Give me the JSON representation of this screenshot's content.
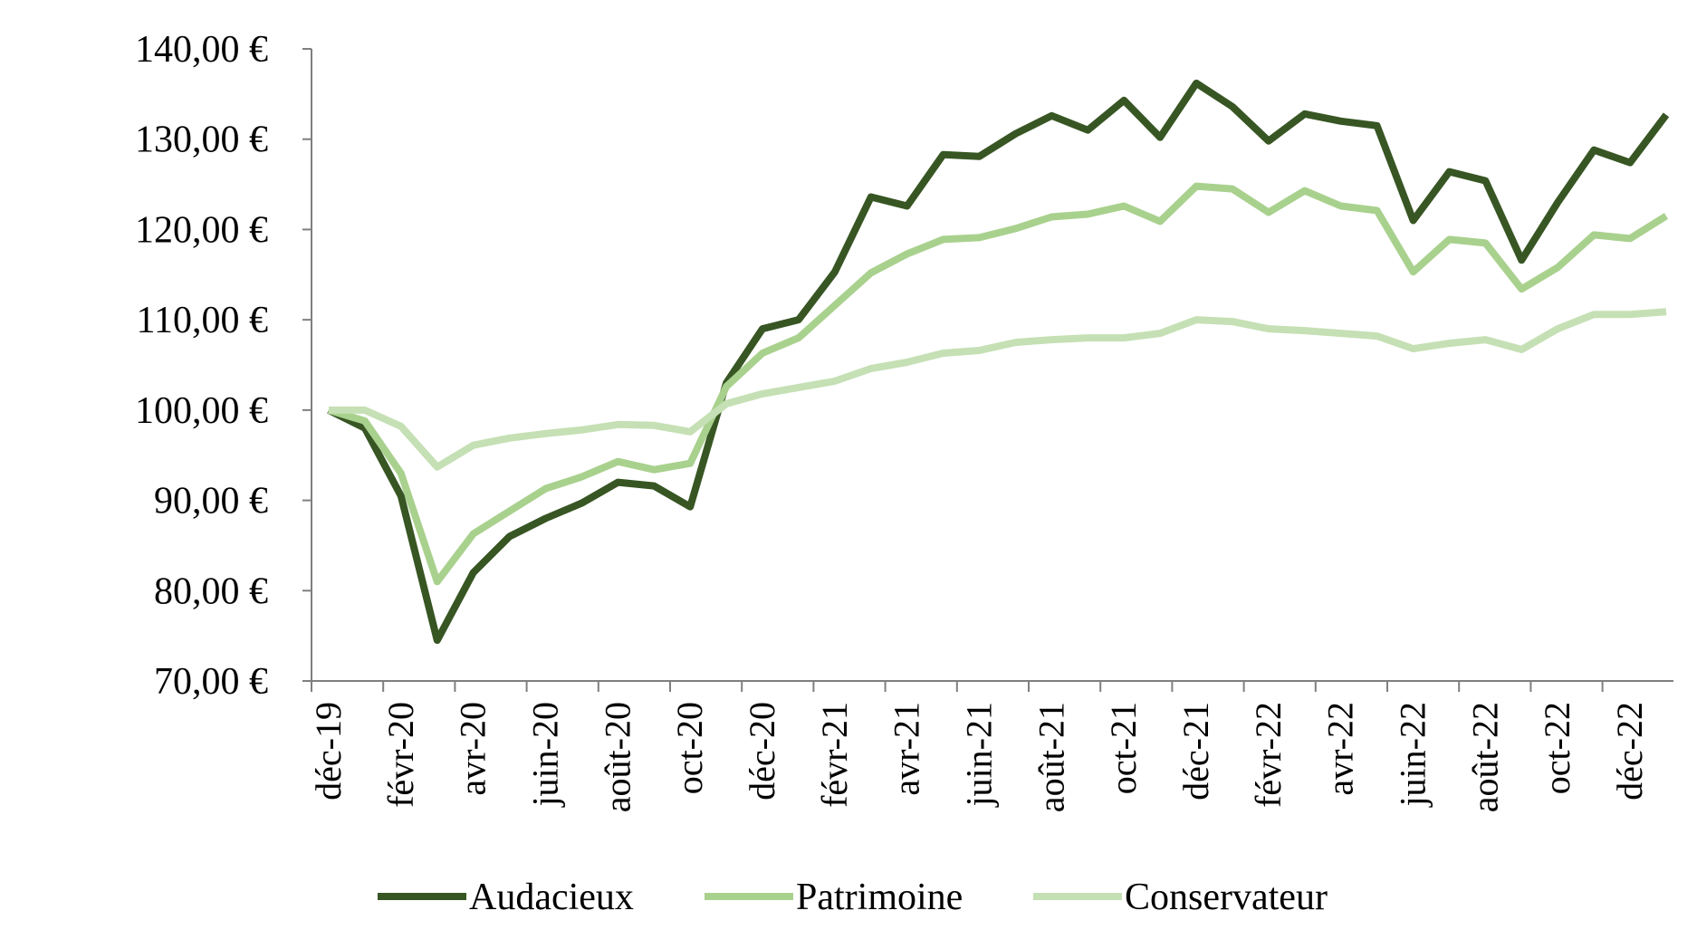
{
  "chart_data": {
    "type": "line",
    "title": "",
    "xlabel": "",
    "ylabel": "",
    "ylim": [
      70,
      140
    ],
    "y_ticks": [
      "70,00 €",
      "80,00 €",
      "90,00 €",
      "100,00 €",
      "110,00 €",
      "120,00 €",
      "130,00 €",
      "140,00 €"
    ],
    "x_tick_labels": [
      "déc-19",
      "févr-20",
      "avr-20",
      "juin-20",
      "août-20",
      "oct-20",
      "déc-20",
      "févr-21",
      "avr-21",
      "juin-21",
      "août-21",
      "oct-21",
      "déc-21",
      "févr-22",
      "avr-22",
      "juin-22",
      "août-22",
      "oct-22",
      "déc-22"
    ],
    "x": [
      "déc-19",
      "janv-20",
      "févr-20",
      "mars-20",
      "avr-20",
      "mai-20",
      "juin-20",
      "juil-20",
      "août-20",
      "sept-20",
      "oct-20",
      "nov-20",
      "déc-20",
      "janv-21",
      "févr-21",
      "mars-21",
      "avr-21",
      "mai-21",
      "juin-21",
      "juil-21",
      "août-21",
      "sept-21",
      "oct-21",
      "nov-21",
      "déc-21",
      "janv-22",
      "févr-22",
      "mars-22",
      "avr-22",
      "mai-22",
      "juin-22",
      "juil-22",
      "août-22",
      "sept-22",
      "oct-22",
      "nov-22",
      "déc-22",
      "janv-23"
    ],
    "grid": false,
    "legend_position": "bottom",
    "series": [
      {
        "name": "Audacieux",
        "color": "#375623",
        "values": [
          100,
          98,
          90.5,
          74.5,
          82,
          86,
          88,
          89.7,
          92,
          91.6,
          89.3,
          103,
          109,
          110,
          115.3,
          123.6,
          122.6,
          128.3,
          128.1,
          130.6,
          132.6,
          131,
          134.3,
          130.2,
          136.2,
          133.6,
          129.8,
          132.8,
          132,
          131.5,
          121,
          126.4,
          125.4,
          116.6,
          123,
          128.8,
          127.4,
          132.7
        ]
      },
      {
        "name": "Patrimoine",
        "color": "#a9d18e",
        "values": [
          100,
          98.8,
          93,
          81,
          86.3,
          88.8,
          91.3,
          92.6,
          94.3,
          93.4,
          94.1,
          102.6,
          106.3,
          108,
          111.6,
          115.2,
          117.3,
          118.9,
          119.1,
          120.1,
          121.4,
          121.7,
          122.6,
          120.9,
          124.8,
          124.5,
          121.9,
          124.3,
          122.6,
          122.1,
          115.3,
          118.9,
          118.5,
          113.4,
          115.8,
          119.4,
          119,
          121.5
        ]
      },
      {
        "name": "Conservateur",
        "color": "#c5e0b4",
        "values": [
          100,
          100,
          98.2,
          93.7,
          96.1,
          96.9,
          97.4,
          97.8,
          98.4,
          98.3,
          97.6,
          100.7,
          101.8,
          102.5,
          103.2,
          104.6,
          105.3,
          106.3,
          106.6,
          107.5,
          107.8,
          108,
          108,
          108.5,
          110,
          109.8,
          109,
          108.8,
          108.5,
          108.2,
          106.8,
          107.4,
          107.8,
          106.7,
          109,
          110.6,
          110.6,
          110.9
        ]
      }
    ]
  }
}
